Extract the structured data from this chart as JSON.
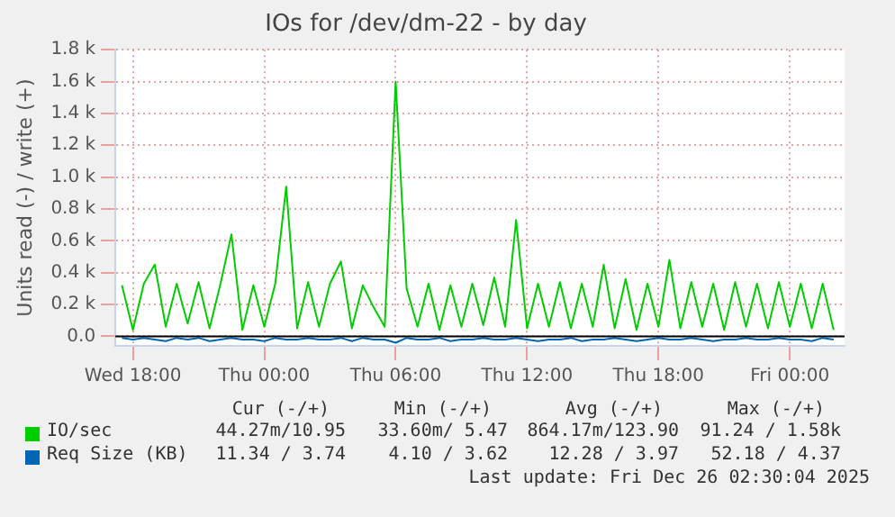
{
  "chart_data": {
    "type": "line",
    "title": "IOs for /dev/dm-22 - by day",
    "ylabel": "Units read (-) / write (+)",
    "xlim": [
      "2025-12-24T17:12",
      "2025-12-26T02:30"
    ],
    "xticks": [
      {
        "value": "2025-12-24T18:00",
        "label": "Wed 18:00"
      },
      {
        "value": "2025-12-25T00:00",
        "label": "Thu 00:00"
      },
      {
        "value": "2025-12-25T06:00",
        "label": "Thu 06:00"
      },
      {
        "value": "2025-12-25T12:00",
        "label": "Thu 12:00"
      },
      {
        "value": "2025-12-25T18:00",
        "label": "Thu 18:00"
      },
      {
        "value": "2025-12-26T00:00",
        "label": "Fri 00:00"
      }
    ],
    "ylim": [
      -60,
      1800
    ],
    "yticks": [
      {
        "value": 0,
        "label": "0.0"
      },
      {
        "value": 200,
        "label": "0.2 k"
      },
      {
        "value": 400,
        "label": "0.4 k"
      },
      {
        "value": 600,
        "label": "0.6 k"
      },
      {
        "value": 800,
        "label": "0.8 k"
      },
      {
        "value": 1000,
        "label": "1.0 k"
      },
      {
        "value": 1200,
        "label": "1.2 k"
      },
      {
        "value": 1400,
        "label": "1.4 k"
      },
      {
        "value": 1600,
        "label": "1.6 k"
      },
      {
        "value": 1800,
        "label": "1.8 k"
      }
    ],
    "x": [
      "2025-12-24T17:30",
      "2025-12-24T18:00",
      "2025-12-24T18:30",
      "2025-12-24T19:00",
      "2025-12-24T19:30",
      "2025-12-24T20:00",
      "2025-12-24T20:30",
      "2025-12-24T21:00",
      "2025-12-24T21:30",
      "2025-12-24T22:00",
      "2025-12-24T22:30",
      "2025-12-24T23:00",
      "2025-12-24T23:30",
      "2025-12-25T00:00",
      "2025-12-25T00:30",
      "2025-12-25T01:00",
      "2025-12-25T01:30",
      "2025-12-25T02:00",
      "2025-12-25T02:30",
      "2025-12-25T03:00",
      "2025-12-25T03:30",
      "2025-12-25T04:00",
      "2025-12-25T04:30",
      "2025-12-25T05:00",
      "2025-12-25T05:30",
      "2025-12-25T06:00",
      "2025-12-25T06:30",
      "2025-12-25T07:00",
      "2025-12-25T07:30",
      "2025-12-25T08:00",
      "2025-12-25T08:30",
      "2025-12-25T09:00",
      "2025-12-25T09:30",
      "2025-12-25T10:00",
      "2025-12-25T10:30",
      "2025-12-25T11:00",
      "2025-12-25T11:30",
      "2025-12-25T12:00",
      "2025-12-25T12:30",
      "2025-12-25T13:00",
      "2025-12-25T13:30",
      "2025-12-25T14:00",
      "2025-12-25T14:30",
      "2025-12-25T15:00",
      "2025-12-25T15:30",
      "2025-12-25T16:00",
      "2025-12-25T16:30",
      "2025-12-25T17:00",
      "2025-12-25T17:30",
      "2025-12-25T18:00",
      "2025-12-25T18:30",
      "2025-12-25T19:00",
      "2025-12-25T19:30",
      "2025-12-25T20:00",
      "2025-12-25T20:30",
      "2025-12-25T21:00",
      "2025-12-25T21:30",
      "2025-12-25T22:00",
      "2025-12-25T22:30",
      "2025-12-25T23:00",
      "2025-12-25T23:30",
      "2025-12-26T00:00",
      "2025-12-26T00:30",
      "2025-12-26T01:00",
      "2025-12-26T01:30",
      "2025-12-26T02:00"
    ],
    "series": [
      {
        "name": "IO/sec",
        "color": "#00cc00",
        "values": [
          320,
          40,
          330,
          450,
          60,
          330,
          80,
          340,
          50,
          330,
          640,
          40,
          320,
          60,
          330,
          940,
          50,
          340,
          60,
          330,
          470,
          50,
          320,
          180,
          60,
          1600,
          300,
          60,
          330,
          40,
          320,
          60,
          330,
          70,
          370,
          60,
          730,
          50,
          330,
          60,
          340,
          50,
          330,
          60,
          450,
          50,
          360,
          40,
          330,
          60,
          480,
          50,
          340,
          60,
          330,
          40,
          340,
          60,
          330,
          50,
          340,
          60,
          330,
          50,
          330,
          40
        ]
      },
      {
        "name": "Req Size (KB)",
        "color": "#0066b3",
        "values": [
          -10,
          -20,
          -10,
          -20,
          -30,
          -10,
          -20,
          -10,
          -30,
          -20,
          -10,
          -20,
          -20,
          -30,
          -10,
          -20,
          -20,
          -10,
          -20,
          -20,
          -10,
          -30,
          -10,
          -20,
          -20,
          -40,
          -10,
          -20,
          -20,
          -10,
          -30,
          -20,
          -20,
          -10,
          -20,
          -20,
          -10,
          -20,
          -30,
          -20,
          -20,
          -10,
          -30,
          -20,
          -20,
          -10,
          -20,
          -30,
          -20,
          -10,
          -20,
          -20,
          -10,
          -20,
          -30,
          -20,
          -20,
          -10,
          -20,
          -20,
          -10,
          -20,
          -20,
          -30,
          -10,
          -20
        ]
      }
    ],
    "ref_lines": [
      {
        "axis": "y",
        "value": 0,
        "color": "#000000"
      }
    ],
    "grid": true,
    "legend": "bottom",
    "marker": "none",
    "line_style": "solid",
    "annotations": [
      "Cur (-/+)",
      "Min (-/+)",
      "Avg (-/+)",
      "Max (-/+)",
      "44.27m/10.95",
      "33.60m/ 5.47",
      "864.17m/123.90",
      "91.24 / 1.58k",
      "11.34 / 3.74",
      "4.10 / 3.62",
      "12.28 / 3.97",
      "52.18 / 4.37",
      "Last update: Fri Dec 26 02:30:04 2025"
    ]
  }
}
